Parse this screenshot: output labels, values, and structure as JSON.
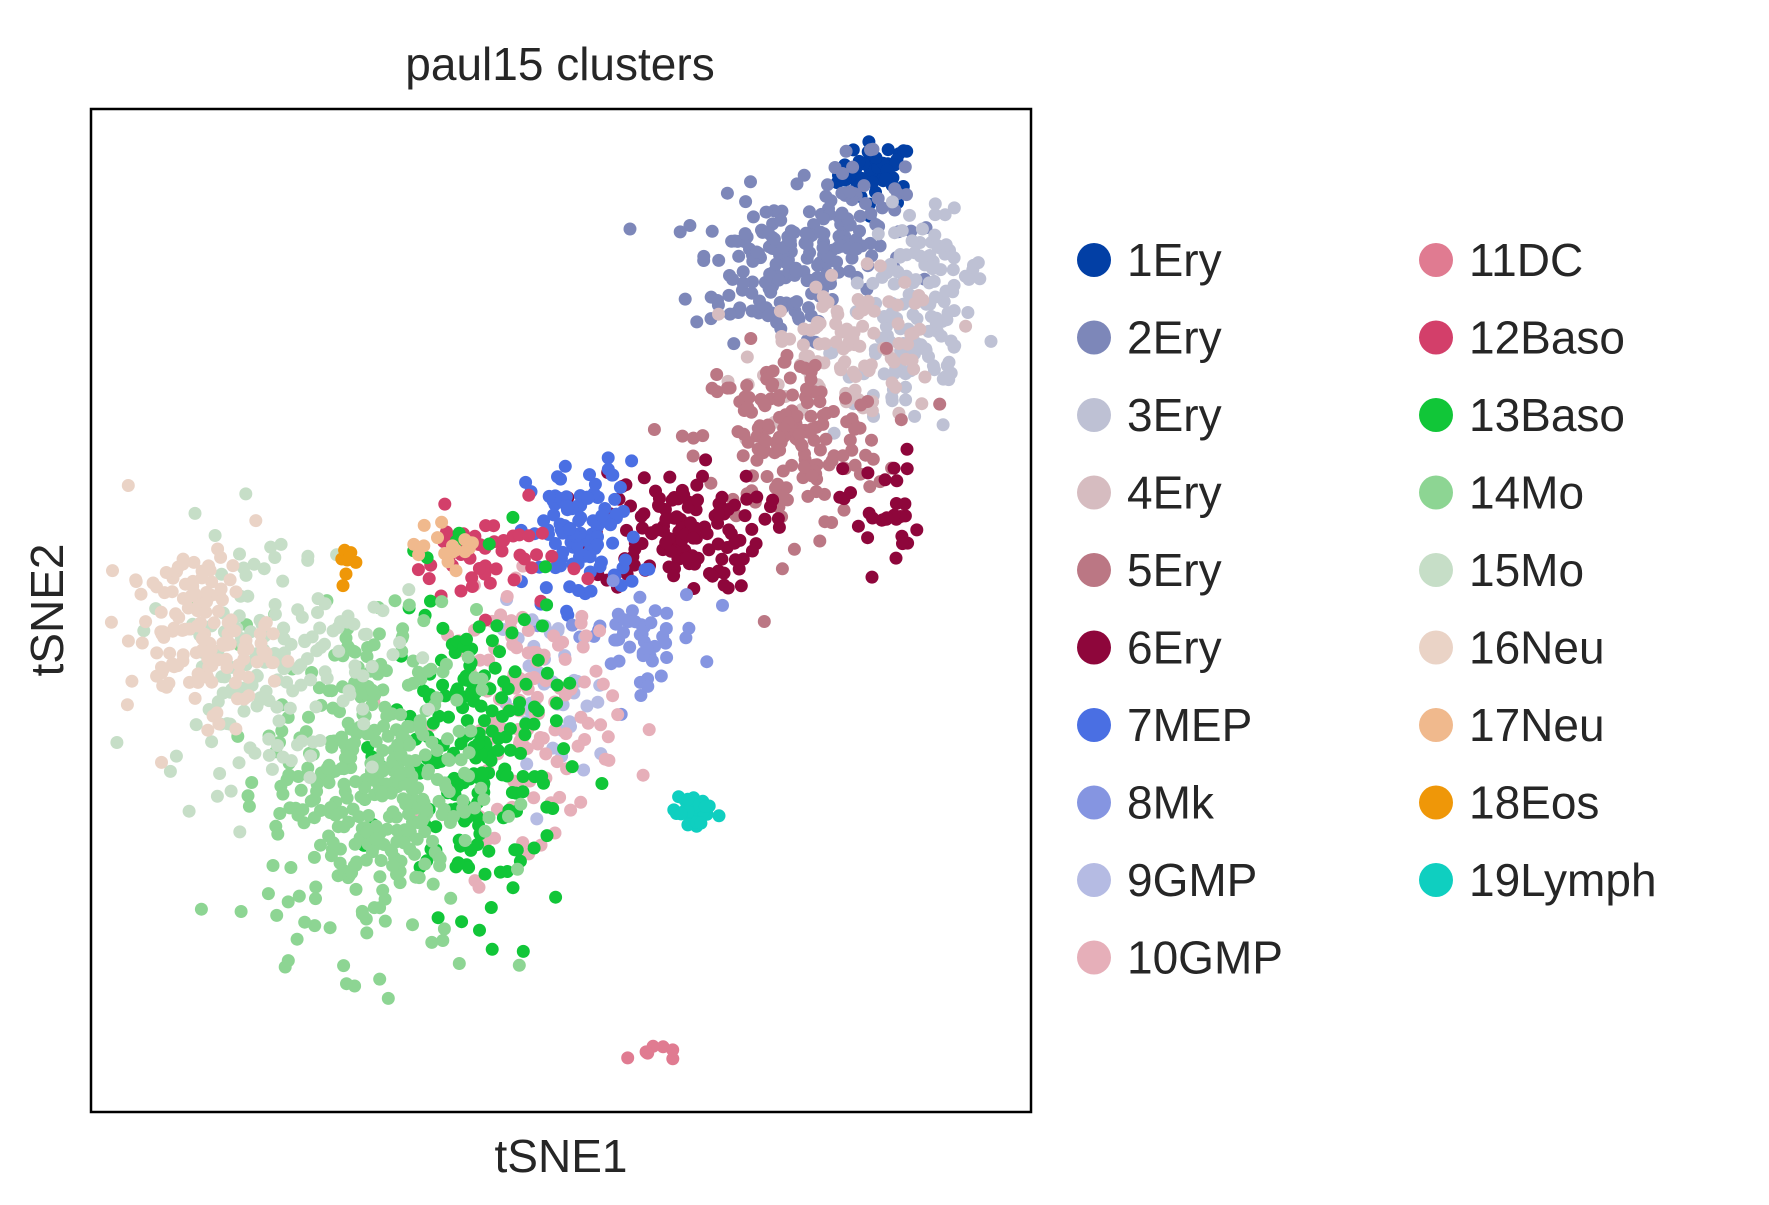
{
  "chart_data": {
    "type": "scatter",
    "title": "paul15 clusters",
    "xlabel": "tSNE1",
    "ylabel": "tSNE2",
    "xlim": [
      0,
      100
    ],
    "ylim": [
      0,
      100
    ],
    "grid": false,
    "ticks_shown": false,
    "legend_position": "right",
    "legend_columns": 2,
    "series": [
      {
        "name": "1Ery",
        "color": "#023fa5",
        "blobs": [
          [
            83.5,
            93.5,
            2.0,
            1.6,
            45
          ]
        ]
      },
      {
        "name": "2Ery",
        "color": "#7d87b9",
        "blobs": [
          [
            73,
            84,
            4.5,
            3.5,
            140
          ],
          [
            80.5,
            89,
            3.0,
            3.0,
            80
          ]
        ]
      },
      {
        "name": "3Ery",
        "color": "#bec1d4",
        "blobs": [
          [
            89,
            84,
            3.0,
            2.8,
            60
          ],
          [
            87,
            76,
            4.0,
            4.5,
            80
          ]
        ]
      },
      {
        "name": "4Ery",
        "color": "#d6bcc0",
        "blobs": [
          [
            81,
            76,
            5.0,
            3.5,
            110
          ]
        ]
      },
      {
        "name": "5Ery",
        "color": "#bb7784",
        "blobs": [
          [
            74.5,
            67,
            5.0,
            4.5,
            170
          ]
        ]
      },
      {
        "name": "6Ery",
        "color": "#8e063b",
        "blobs": [
          [
            62.5,
            58,
            4.5,
            3.0,
            130
          ],
          [
            84,
            60,
            2.0,
            3.0,
            30
          ]
        ]
      },
      {
        "name": "7MEP",
        "color": "#4a6fe3",
        "blobs": [
          [
            52.5,
            57.5,
            3.0,
            3.6,
            110
          ]
        ]
      },
      {
        "name": "8Mk",
        "color": "#8595e1",
        "blobs": [
          [
            58,
            47.5,
            3.5,
            2.5,
            50
          ]
        ]
      },
      {
        "name": "9GMP",
        "color": "#b5bbe3",
        "blobs": [
          [
            49,
            41,
            3.0,
            4.5,
            45
          ]
        ]
      },
      {
        "name": "10GMP",
        "color": "#e6afb9",
        "blobs": [
          [
            47,
            40,
            4.5,
            6.0,
            130
          ]
        ]
      },
      {
        "name": "11DC",
        "color": "#e07b91",
        "blobs": [
          [
            59.5,
            6,
            1.2,
            0.5,
            8
          ]
        ]
      },
      {
        "name": "12Baso",
        "color": "#d33f6a",
        "blobs": [
          [
            42,
            55,
            4.0,
            2.5,
            50
          ]
        ]
      },
      {
        "name": "13Baso",
        "color": "#11c638",
        "blobs": [
          [
            41,
            36,
            4.5,
            8.0,
            200
          ]
        ]
      },
      {
        "name": "14Mo",
        "color": "#8dd593",
        "blobs": [
          [
            30,
            33,
            5.5,
            8.5,
            380
          ]
        ]
      },
      {
        "name": "15Mo",
        "color": "#c6dec7",
        "blobs": [
          [
            19.5,
            45.5,
            6.0,
            6.5,
            160
          ]
        ]
      },
      {
        "name": "16Neu",
        "color": "#ead3c6",
        "blobs": [
          [
            11.5,
            47.5,
            3.8,
            4.2,
            140
          ]
        ]
      },
      {
        "name": "17Neu",
        "color": "#f0b98d",
        "blobs": [
          [
            38.5,
            56.5,
            2.0,
            1.0,
            18
          ]
        ]
      },
      {
        "name": "18Eos",
        "color": "#ef9708",
        "blobs": [
          [
            27.5,
            54,
            0.5,
            1.1,
            8
          ]
        ]
      },
      {
        "name": "19Lymph",
        "color": "#0fcfc0",
        "blobs": [
          [
            64,
            30,
            1.0,
            1.1,
            35
          ]
        ]
      }
    ]
  }
}
